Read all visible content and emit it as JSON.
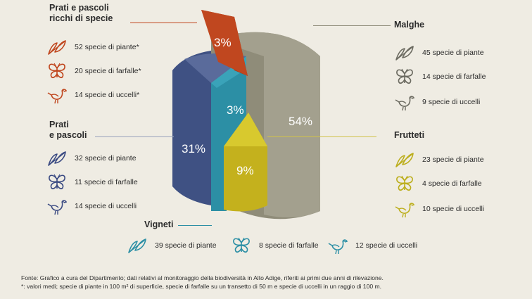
{
  "chart_data": {
    "type": "pie",
    "slices": [
      {
        "name": "Malghe",
        "value": 54,
        "label": "54%",
        "color": "#9b9885"
      },
      {
        "name": "Prati e pascoli",
        "value": 31,
        "label": "31%",
        "color": "#4a5b88"
      },
      {
        "name": "Vigneti",
        "value": 3,
        "label": "3%",
        "color": "#2c8fa5"
      },
      {
        "name": "Frutteti",
        "value": 9,
        "label": "9%",
        "color": "#c7b720"
      },
      {
        "name": "Prati e pascoli ricchi di specie",
        "value": 3,
        "label": "3%",
        "color": "#c0471f"
      }
    ]
  },
  "groups": {
    "rich": {
      "title_1": "Prati e pascoli",
      "title_2": "ricchi di specie",
      "color": "#c0471f",
      "plants": "52 specie di piante*",
      "butterflies": "20 specie di farfalle*",
      "birds": "14 specie di uccelli*"
    },
    "meadows": {
      "title_1": "Prati",
      "title_2": "e pascoli",
      "color": "#3a4a82",
      "plants": "32 specie di piante",
      "butterflies": "11 specie di farfalle",
      "birds": "14 specie di uccelli"
    },
    "alpine": {
      "title": "Malghe",
      "color": "#6b6a60",
      "plants": "45 specie di piante",
      "butterflies": "14 specie di farfalle",
      "birds": "9 specie di uccelli"
    },
    "orchards": {
      "title": "Frutteti",
      "color": "#bcae1c",
      "plants": "23 specie di piante",
      "butterflies": "4 specie di farfalle",
      "birds": "10 specie di uccelli"
    },
    "vineyards": {
      "title": "Vigneti",
      "color": "#2c8fa5",
      "plants": "39 specie di piante",
      "butterflies": "8 specie di farfalle",
      "birds": "12 specie di uccelli"
    }
  },
  "icons": [
    "leaf-icon",
    "butterfly-icon",
    "bird-icon"
  ],
  "footer": {
    "source": "Fonte: Grafico a cura del Dipartimento; dati relativi al monitoraggio della biodiversità in Alto Adige, riferiti ai primi due anni di rilevazione.",
    "note": "*: valori medi; specie di piante in 100 m² di superficie, specie di farfalle su un transetto di 50 m e specie di uccelli in un raggio di 100 m."
  }
}
